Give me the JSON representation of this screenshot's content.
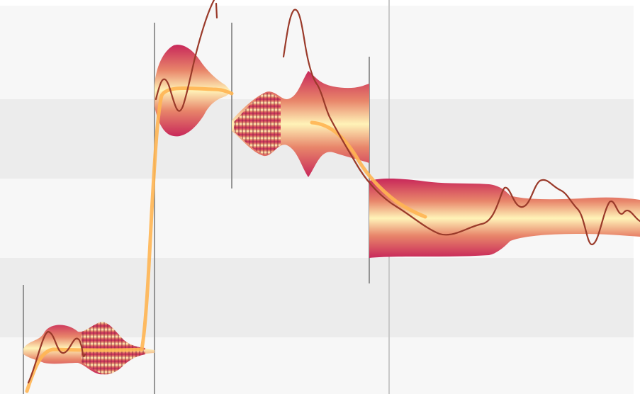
{
  "editor": {
    "view": "pitch-editor",
    "colors": {
      "lane_light": "#f7f7f7",
      "lane_dark": "#ececec",
      "blob_edge": "#c8285a",
      "blob_mid": "#e8856a",
      "blob_core": "#fff3b8",
      "pitch_curve": "#9a3a2a",
      "center_line": "#ffb552",
      "separator": "#777777"
    },
    "blobs": [
      {
        "name": "note-blob-1"
      },
      {
        "name": "note-blob-2"
      },
      {
        "name": "note-blob-3"
      },
      {
        "name": "note-blob-4"
      }
    ]
  }
}
